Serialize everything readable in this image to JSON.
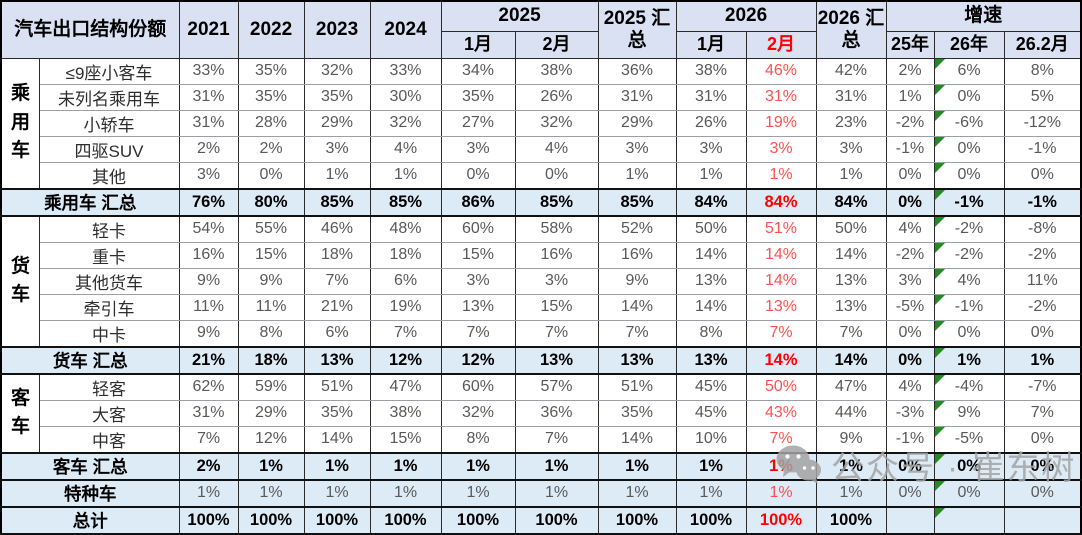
{
  "header": {
    "title": "汽车出口结构份额",
    "y2021": "2021",
    "y2022": "2022",
    "y2023": "2023",
    "y2024": "2024",
    "p2025": "2025",
    "p2025_m1": "1月",
    "p2025_m2": "2月",
    "p2025_sum": "2025 汇总",
    "p2026": "2026",
    "p2026_m1": "1月",
    "p2026_m2": "2月",
    "p2026_sum": "2026 汇总",
    "growth": "增速",
    "g25": "25年",
    "g26": "26年",
    "g262": "26.2月"
  },
  "colors": {
    "header_bg": "#d9e1f2",
    "summary_bg": "#ddebf7",
    "red_column": "#ff0000",
    "red_column_light": "#ff5050",
    "value_text": "#595959",
    "error_triangle_green": "#228B22",
    "watermark_gray": "#a3a3a3"
  },
  "chart_data": {
    "type": "table",
    "title": "汽车出口结构份额",
    "columns": [
      "2021",
      "2022",
      "2023",
      "2024",
      "2025-1月",
      "2025-2月",
      "2025汇总",
      "2026-1月",
      "2026-2月",
      "2026汇总",
      "增速-25年",
      "增速-26年",
      "增速-26.2月"
    ],
    "red_column_index": 8,
    "green_triangle_column_index": 11,
    "sections": [
      {
        "group": "乘用车",
        "rows": [
          {
            "label": "≤9座小客车",
            "values": [
              "33%",
              "35%",
              "32%",
              "33%",
              "34%",
              "38%",
              "36%",
              "38%",
              "46%",
              "42%",
              "2%",
              "6%",
              "8%"
            ]
          },
          {
            "label": "未列名乘用车",
            "values": [
              "31%",
              "35%",
              "35%",
              "30%",
              "35%",
              "26%",
              "31%",
              "31%",
              "31%",
              "31%",
              "1%",
              "0%",
              "5%"
            ]
          },
          {
            "label": "小轿车",
            "values": [
              "31%",
              "28%",
              "29%",
              "32%",
              "27%",
              "32%",
              "29%",
              "26%",
              "19%",
              "23%",
              "-2%",
              "-6%",
              "-12%"
            ]
          },
          {
            "label": "四驱SUV",
            "values": [
              "2%",
              "2%",
              "3%",
              "4%",
              "3%",
              "4%",
              "3%",
              "3%",
              "3%",
              "3%",
              "-1%",
              "0%",
              "-1%"
            ]
          },
          {
            "label": "其他",
            "values": [
              "3%",
              "0%",
              "1%",
              "1%",
              "0%",
              "0%",
              "1%",
              "1%",
              "1%",
              "1%",
              "0%",
              "0%",
              "0%"
            ]
          }
        ],
        "summary": {
          "label": "乘用车 汇总",
          "values": [
            "76%",
            "80%",
            "85%",
            "85%",
            "86%",
            "85%",
            "85%",
            "84%",
            "84%",
            "84%",
            "0%",
            "-1%",
            "-1%"
          ]
        }
      },
      {
        "group": "货车",
        "rows": [
          {
            "label": "轻卡",
            "values": [
              "54%",
              "55%",
              "46%",
              "48%",
              "60%",
              "58%",
              "52%",
              "50%",
              "51%",
              "50%",
              "4%",
              "-2%",
              "-8%"
            ]
          },
          {
            "label": "重卡",
            "values": [
              "16%",
              "15%",
              "18%",
              "18%",
              "15%",
              "16%",
              "16%",
              "14%",
              "14%",
              "14%",
              "-2%",
              "-2%",
              "-2%"
            ]
          },
          {
            "label": "其他货车",
            "values": [
              "9%",
              "9%",
              "7%",
              "6%",
              "3%",
              "3%",
              "9%",
              "13%",
              "14%",
              "13%",
              "3%",
              "4%",
              "11%"
            ]
          },
          {
            "label": "牵引车",
            "values": [
              "11%",
              "11%",
              "21%",
              "19%",
              "13%",
              "15%",
              "14%",
              "14%",
              "13%",
              "13%",
              "-5%",
              "-1%",
              "-2%"
            ]
          },
          {
            "label": "中卡",
            "values": [
              "9%",
              "8%",
              "6%",
              "7%",
              "7%",
              "7%",
              "7%",
              "8%",
              "7%",
              "7%",
              "0%",
              "0%",
              "0%"
            ]
          }
        ],
        "summary": {
          "label": "货车 汇总",
          "values": [
            "21%",
            "18%",
            "13%",
            "12%",
            "12%",
            "13%",
            "13%",
            "13%",
            "14%",
            "14%",
            "0%",
            "1%",
            "1%"
          ]
        }
      },
      {
        "group": "客车",
        "rows": [
          {
            "label": "轻客",
            "values": [
              "62%",
              "59%",
              "51%",
              "47%",
              "60%",
              "57%",
              "51%",
              "45%",
              "50%",
              "47%",
              "4%",
              "-4%",
              "-7%"
            ]
          },
          {
            "label": "大客",
            "values": [
              "31%",
              "29%",
              "35%",
              "38%",
              "32%",
              "36%",
              "35%",
              "45%",
              "43%",
              "44%",
              "-3%",
              "9%",
              "7%"
            ]
          },
          {
            "label": "中客",
            "values": [
              "7%",
              "12%",
              "14%",
              "15%",
              "8%",
              "7%",
              "14%",
              "10%",
              "7%",
              "9%",
              "-1%",
              "-5%",
              "0%"
            ]
          }
        ],
        "summary": {
          "label": "客车 汇总",
          "values": [
            "2%",
            "1%",
            "1%",
            "1%",
            "1%",
            "1%",
            "1%",
            "1%",
            "1%",
            "1%",
            "0%",
            "0%",
            "0%"
          ]
        }
      }
    ],
    "extra_rows": [
      {
        "label": "特种车",
        "style": "special",
        "values": [
          "1%",
          "1%",
          "1%",
          "1%",
          "1%",
          "1%",
          "1%",
          "1%",
          "1%",
          "1%",
          "0%",
          "0%",
          "0%"
        ]
      },
      {
        "label": "总计",
        "style": "total",
        "values": [
          "100%",
          "100%",
          "100%",
          "100%",
          "100%",
          "100%",
          "100%",
          "100%",
          "100%",
          "100%",
          "",
          "",
          ""
        ]
      }
    ]
  },
  "watermark": {
    "text": "公众号 · 崔东树",
    "icon": "wechat-icon"
  }
}
